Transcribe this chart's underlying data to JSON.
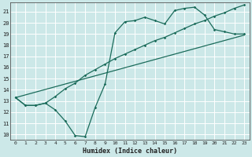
{
  "xlabel": "Humidex (Indice chaleur)",
  "bg_color": "#cce8e8",
  "grid_color": "#ffffff",
  "line_color": "#1a6b5a",
  "xlim": [
    -0.5,
    23.5
  ],
  "ylim": [
    9.5,
    21.8
  ],
  "yticks": [
    10,
    11,
    12,
    13,
    14,
    15,
    16,
    17,
    18,
    19,
    20,
    21
  ],
  "xticks": [
    0,
    1,
    2,
    3,
    4,
    5,
    6,
    7,
    8,
    9,
    10,
    11,
    12,
    13,
    14,
    15,
    16,
    17,
    18,
    19,
    20,
    21,
    22,
    23
  ],
  "line1_x": [
    0,
    1,
    2,
    3,
    4,
    5,
    6,
    7,
    8,
    9,
    10,
    11,
    12,
    13,
    14,
    15,
    16,
    17,
    18,
    19,
    20,
    21,
    22,
    23
  ],
  "line1_y": [
    13.3,
    12.6,
    12.6,
    12.8,
    12.2,
    11.2,
    9.9,
    9.8,
    12.4,
    14.5,
    19.1,
    20.1,
    20.2,
    20.5,
    20.2,
    19.9,
    21.1,
    21.3,
    21.4,
    20.7,
    19.4,
    19.2,
    19.0,
    19.0
  ],
  "line2_x": [
    0,
    1,
    2,
    3,
    4,
    5,
    6,
    7,
    8,
    9,
    10,
    11,
    12,
    13,
    14,
    15,
    16,
    17,
    18,
    19,
    20,
    21,
    22,
    23
  ],
  "line2_y": [
    13.3,
    12.6,
    12.6,
    12.8,
    13.4,
    14.1,
    14.6,
    15.3,
    15.8,
    16.3,
    16.8,
    17.2,
    17.6,
    18.0,
    18.4,
    18.7,
    19.1,
    19.5,
    19.9,
    20.2,
    20.6,
    20.9,
    21.3,
    21.6
  ],
  "line3_x": [
    0,
    23
  ],
  "line3_y": [
    13.3,
    18.9
  ]
}
